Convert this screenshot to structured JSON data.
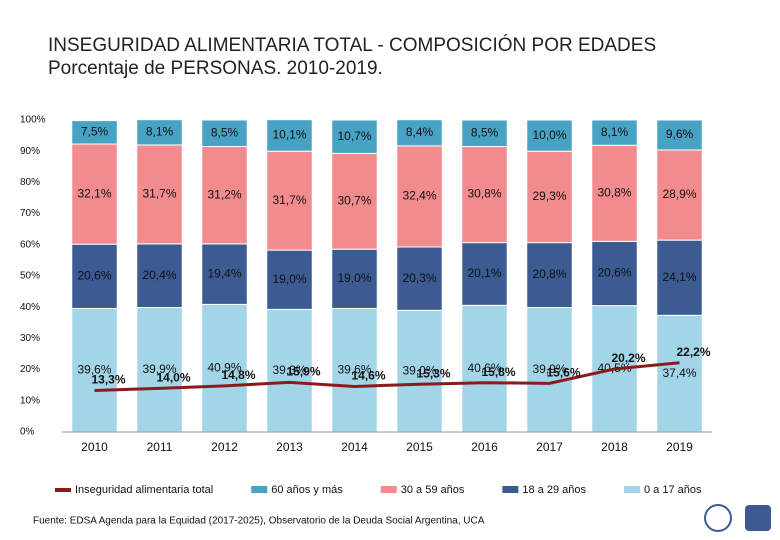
{
  "chart_data": {
    "type": "bar",
    "stacked": true,
    "title": "INSEGURIDAD ALIMENTARIA TOTAL - COMPOSICIÓN POR EDADES",
    "subtitle": "Porcentaje de PERSONAS. 2010-2019.",
    "categories": [
      "2010",
      "2011",
      "2012",
      "2013",
      "2014",
      "2015",
      "2016",
      "2017",
      "2018",
      "2019"
    ],
    "series": [
      {
        "name": "0 a 17 años",
        "color": "#a3d5e8",
        "values": [
          39.6,
          39.9,
          40.9,
          39.3,
          39.6,
          39.0,
          40.6,
          39.9,
          40.5,
          37.4
        ],
        "value_labels": [
          "39,6%",
          "39,9%",
          "40,9%",
          "39,3%",
          "39,6%",
          "39,0%",
          "40,6%",
          "39,9%",
          "40,5%",
          "37,4%"
        ]
      },
      {
        "name": "18 a 29 años",
        "color": "#3b5b92",
        "values": [
          20.6,
          20.4,
          19.4,
          19.0,
          19.0,
          20.3,
          20.1,
          20.8,
          20.6,
          24.1
        ],
        "value_labels": [
          "20,6%",
          "20,4%",
          "19,4%",
          "19,0%",
          "19,0%",
          "20,3%",
          "20,1%",
          "20,8%",
          "20,6%",
          "24,1%"
        ]
      },
      {
        "name": "30 a 59 años",
        "color": "#f28b8e",
        "values": [
          32.1,
          31.7,
          31.2,
          31.7,
          30.7,
          32.4,
          30.8,
          29.3,
          30.8,
          28.9
        ],
        "value_labels": [
          "32,1%",
          "31,7%",
          "31,2%",
          "31,7%",
          "30,7%",
          "32,4%",
          "30,8%",
          "29,3%",
          "30,8%",
          "28,9%"
        ]
      },
      {
        "name": "60 años y más",
        "color": "#48a2c3",
        "values": [
          7.5,
          8.1,
          8.5,
          10.1,
          10.7,
          8.4,
          8.5,
          10.0,
          8.1,
          9.6
        ],
        "value_labels": [
          "7,5%",
          "8,1%",
          "8,5%",
          "10,1%",
          "10,7%",
          "8,4%",
          "8,5%",
          "10,0%",
          "8,1%",
          "9,6%"
        ]
      },
      {
        "name": "Inseguridad alimentaria total",
        "type": "line",
        "color": "#8b1a1a",
        "values": [
          13.3,
          14.0,
          14.8,
          15.9,
          14.6,
          15.3,
          15.8,
          15.6,
          20.2,
          22.2
        ],
        "value_labels": [
          "13,3%",
          "14,0%",
          "14,8%",
          "15,9%",
          "14,6%",
          "15,3%",
          "15,8%",
          "15,6%",
          "20,2%",
          "22,2%"
        ]
      }
    ],
    "legend_order": [
      4,
      3,
      2,
      1,
      0
    ],
    "ylim": [
      0,
      100
    ],
    "yticks": [
      {
        "value": 0,
        "label": "0%"
      },
      {
        "value": 10,
        "label": "10%"
      },
      {
        "value": 20,
        "label": "20%"
      },
      {
        "value": 30,
        "label": "30%"
      },
      {
        "value": 40,
        "label": "40%"
      },
      {
        "value": 50,
        "label": "50%"
      },
      {
        "value": 60,
        "label": "60%"
      },
      {
        "value": 70,
        "label": "70%"
      },
      {
        "value": 80,
        "label": "80%"
      },
      {
        "value": 90,
        "label": "90%"
      },
      {
        "value": 100,
        "label": "100%"
      }
    ],
    "grid": false
  },
  "footer": {
    "source": "Fuente: EDSA Agenda para la Equidad (2017-2025), Observatorio de la Deuda Social Argentina, UCA"
  }
}
